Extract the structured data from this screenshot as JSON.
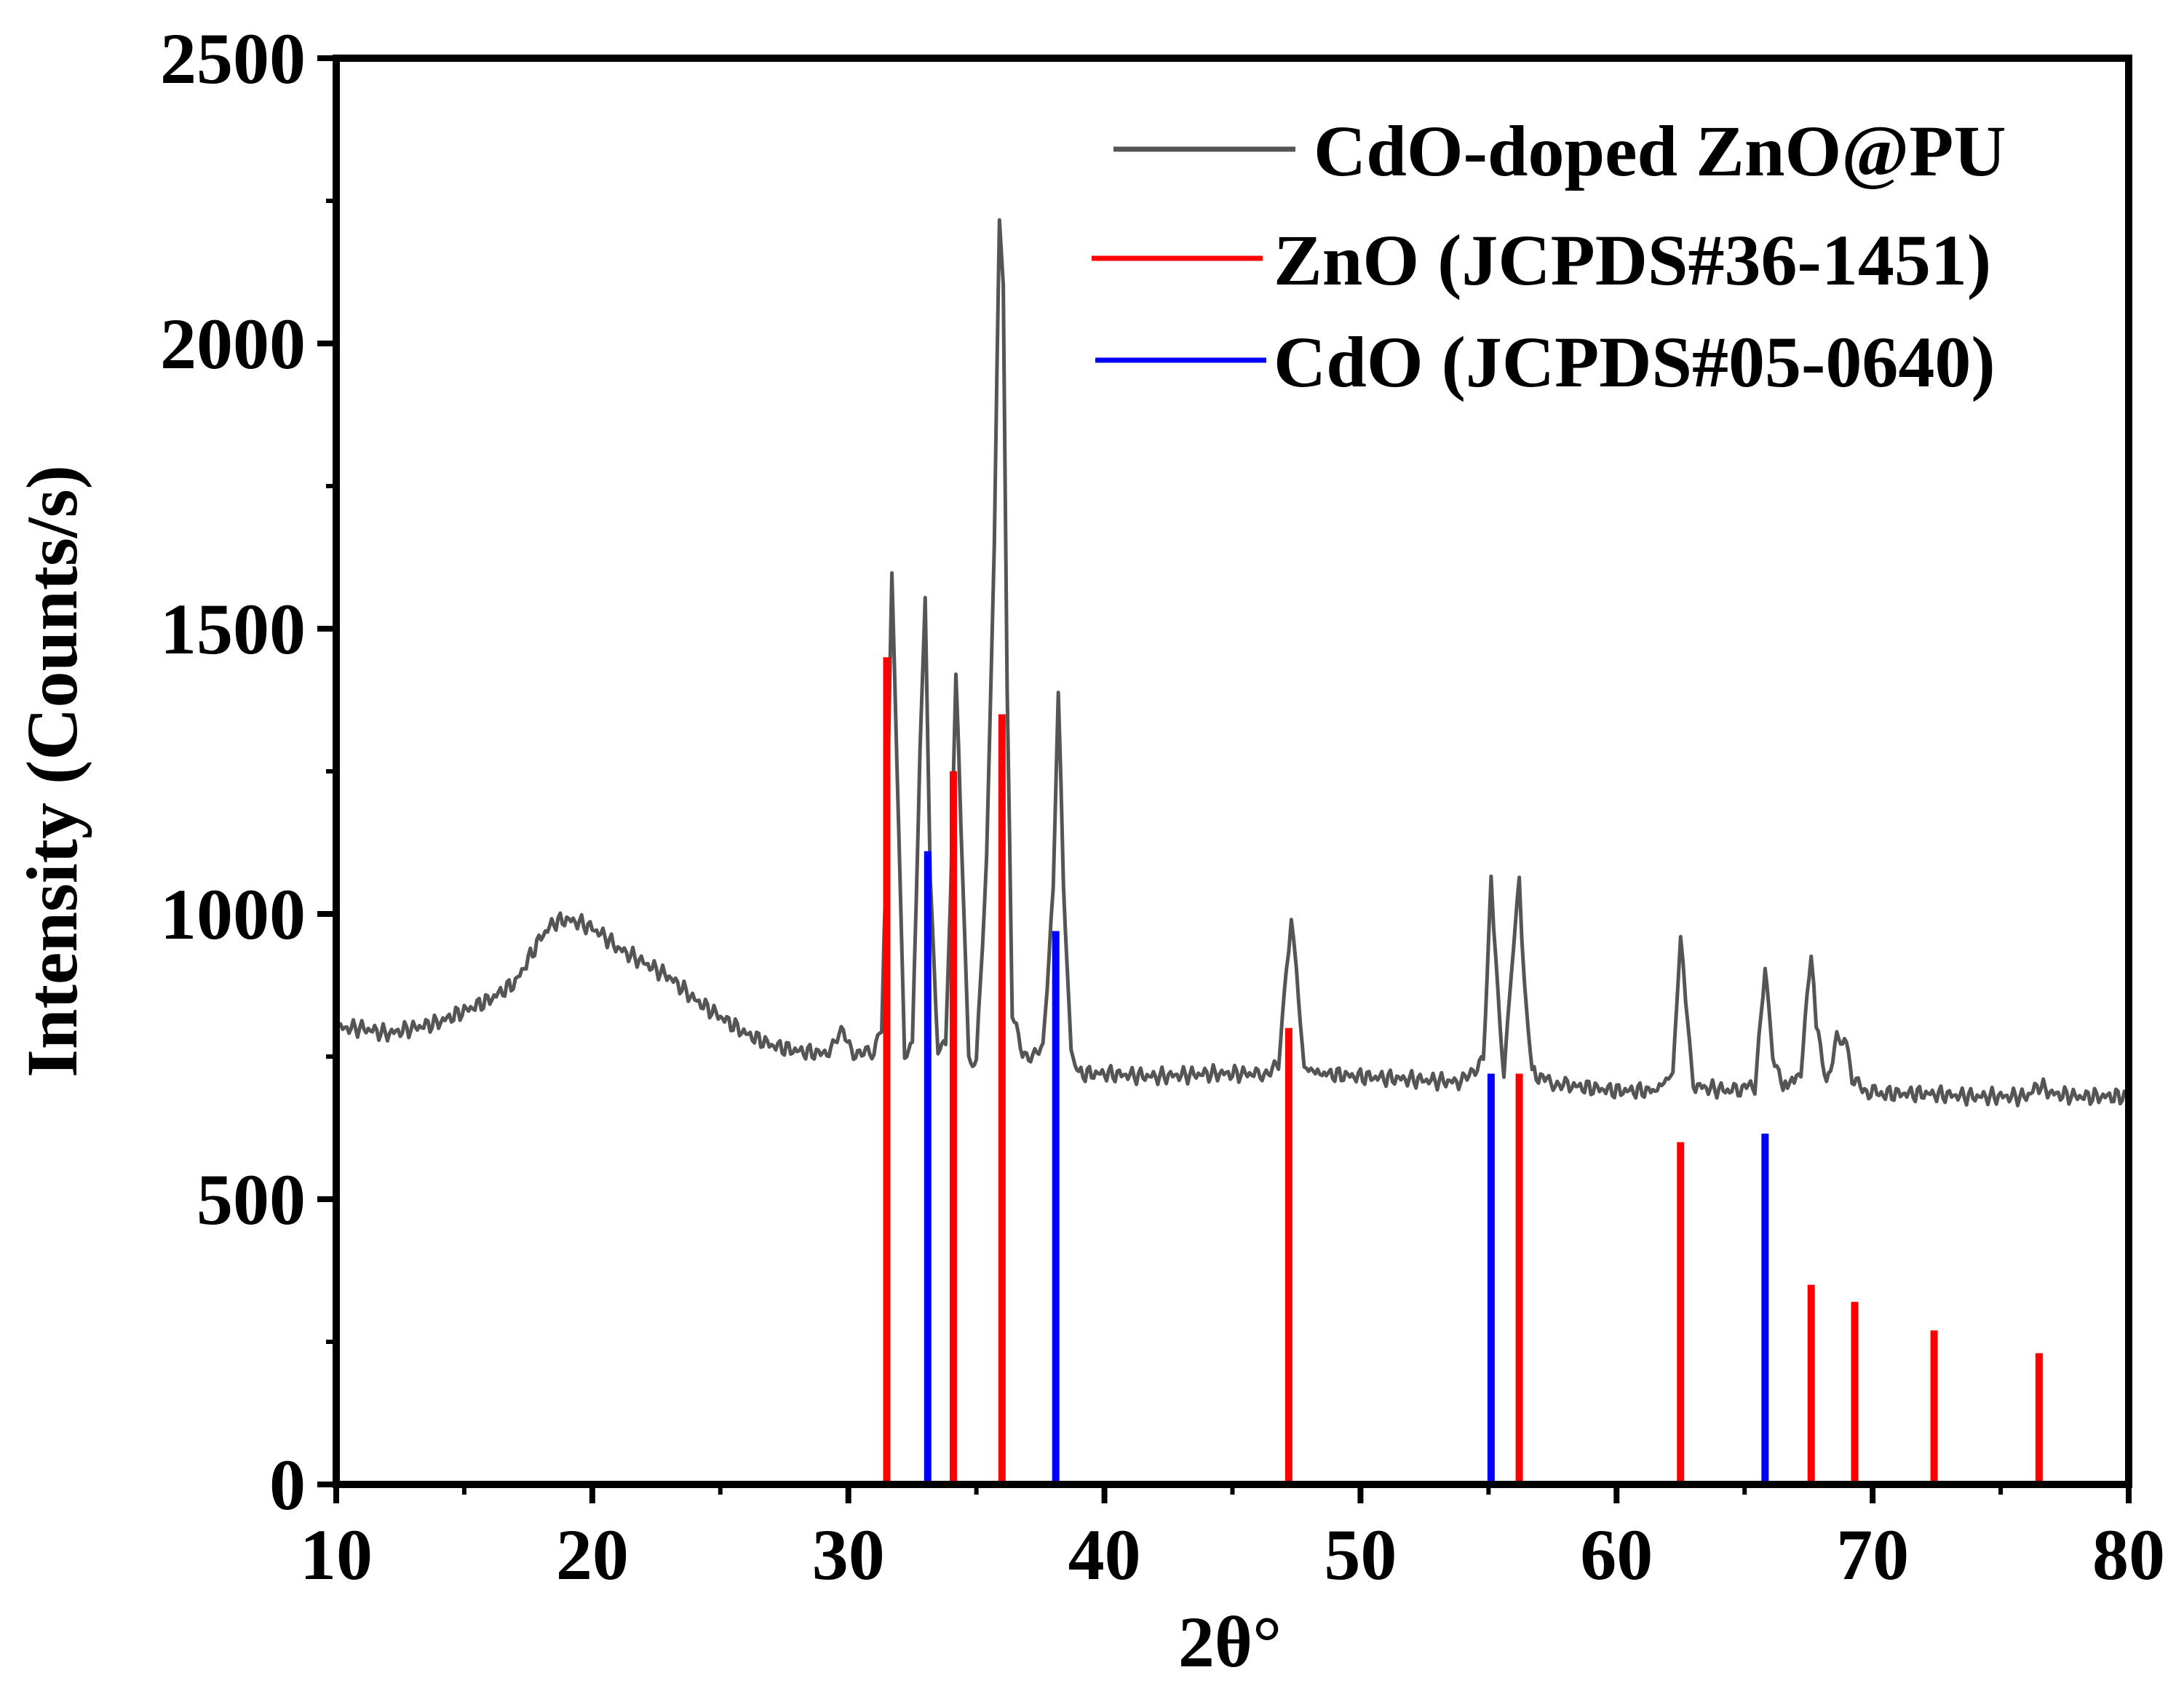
{
  "chart_data": {
    "type": "line",
    "xlabel": "2θ°",
    "ylabel": "Intensity (Counts/s)",
    "xlim": [
      10,
      80
    ],
    "ylim": [
      0,
      2500
    ],
    "xticks": [
      10,
      20,
      30,
      40,
      50,
      60,
      70,
      80
    ],
    "yticks": [
      0,
      500,
      1000,
      1500,
      2000,
      2500
    ],
    "legend_position": "top-right",
    "series": [
      {
        "name": "CdO-doped ZnO@PU",
        "color": "#555555",
        "style": "line",
        "x": [
          10,
          11,
          12,
          13,
          14,
          15,
          16,
          17,
          17.5,
          18,
          18.5,
          19,
          19.5,
          20,
          20.5,
          21,
          22,
          23,
          24,
          25,
          26,
          27,
          28,
          29,
          29.8,
          30.2,
          30.6,
          31,
          31.3,
          31.5,
          31.7,
          31.9,
          32.2,
          32.5,
          32.8,
          33,
          33.2,
          33.5,
          33.8,
          34,
          34.2,
          34.4,
          34.7,
          35,
          35.4,
          35.7,
          35.9,
          36.05,
          36.2,
          36.4,
          36.8,
          37.2,
          37.6,
          38,
          38.2,
          38.4,
          38.7,
          39,
          40,
          42,
          44,
          46,
          46.8,
          47.1,
          47.3,
          47.5,
          47.8,
          48.5,
          50,
          52,
          54,
          54.8,
          55.1,
          55.3,
          55.6,
          55.9,
          56.2,
          56.4,
          56.7,
          57.2,
          58,
          60,
          61.5,
          62.2,
          62.5,
          62.7,
          63,
          63.5,
          64.5,
          65.4,
          65.8,
          66.1,
          66.5,
          67.2,
          67.6,
          67.8,
          68.2,
          68.6,
          68.9,
          69.2,
          69.6,
          70.5,
          72,
          74,
          76,
          76.5,
          77,
          78,
          80
        ],
        "y": [
          800,
          800,
          790,
          800,
          810,
          830,
          850,
          880,
          920,
          960,
          985,
          990,
          985,
          975,
          960,
          940,
          915,
          890,
          850,
          820,
          790,
          770,
          760,
          755,
          790,
          760,
          755,
          750,
          800,
          1130,
          1600,
          1250,
          760,
          760,
          1300,
          1550,
          1050,
          770,
          760,
          1050,
          1430,
          1150,
          750,
          740,
          1100,
          1650,
          2220,
          2100,
          1400,
          820,
          760,
          750,
          760,
          1050,
          1390,
          1050,
          760,
          720,
          720,
          715,
          720,
          720,
          730,
          900,
          990,
          900,
          730,
          720,
          715,
          710,
          705,
          750,
          1060,
          900,
          720,
          900,
          1060,
          880,
          720,
          710,
          700,
          690,
          690,
          720,
          960,
          850,
          700,
          695,
          690,
          700,
          900,
          760,
          695,
          720,
          930,
          800,
          700,
          790,
          780,
          710,
          690,
          685,
          685,
          680,
          680,
          700,
          685,
          680,
          680
        ]
      },
      {
        "name": "ZnO (JCPDS#36-1451)",
        "color": "#ff0000",
        "style": "sticks",
        "x": [
          31.5,
          34.1,
          36.0,
          47.2,
          56.2,
          62.5,
          67.6,
          69.3,
          72.4,
          76.5
        ],
        "y": [
          1450,
          1250,
          1350,
          800,
          720,
          600,
          350,
          320,
          270,
          230
        ]
      },
      {
        "name": "CdO (JCPDS#05-0640)",
        "color": "#0000ff",
        "style": "sticks",
        "x": [
          33.1,
          38.1,
          55.1,
          65.8
        ],
        "y": [
          1110,
          970,
          720,
          615
        ]
      }
    ]
  }
}
